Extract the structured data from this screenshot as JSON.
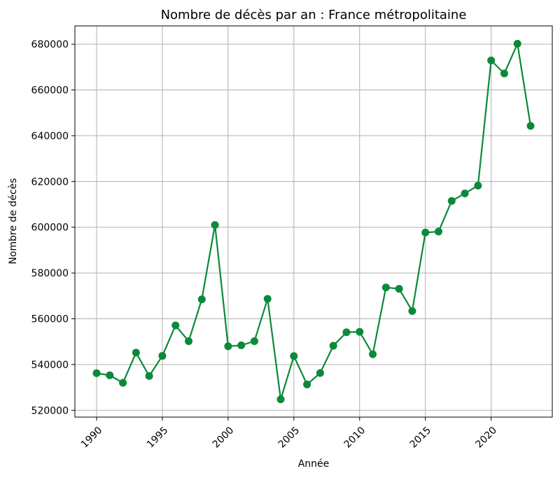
{
  "chart_data": {
    "type": "line",
    "title": "Nombre de décès par an : France métropolitaine",
    "xlabel": "Année",
    "ylabel": "Nombre de décès",
    "x": [
      1990,
      1991,
      1992,
      1993,
      1994,
      1995,
      1996,
      1997,
      1998,
      1999,
      2000,
      2001,
      2002,
      2003,
      2004,
      2005,
      2006,
      2007,
      2008,
      2009,
      2010,
      2011,
      2012,
      2013,
      2014,
      2015,
      2016,
      2017,
      2018,
      2019,
      2020,
      2021,
      2022,
      2023
    ],
    "series": [
      {
        "values": [
          536200,
          535300,
          532000,
          545200,
          535000,
          543800,
          557100,
          550200,
          568500,
          601000,
          548000,
          548400,
          550200,
          568700,
          524800,
          543700,
          531300,
          536300,
          548200,
          554100,
          554300,
          544500,
          573700,
          573100,
          563400,
          597700,
          598100,
          611500,
          614800,
          618200,
          672900,
          667200,
          680200,
          644300
        ],
        "color": "#0c893a"
      }
    ],
    "xticks": [
      "1990",
      "1995",
      "2000",
      "2005",
      "2010",
      "2015",
      "2020"
    ],
    "yticks": [
      "520000",
      "540000",
      "560000",
      "580000",
      "600000",
      "620000",
      "640000",
      "660000",
      "680000"
    ],
    "xlim": [
      1988.35,
      2024.65
    ],
    "ylim": [
      517020,
      688000
    ],
    "grid": true,
    "marker": "circle"
  }
}
